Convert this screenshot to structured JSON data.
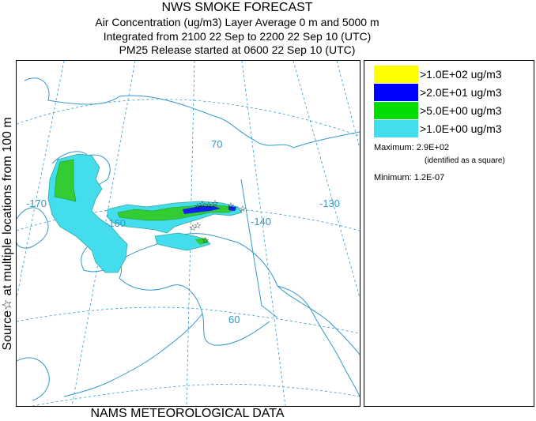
{
  "header": {
    "title": "NWS SMOKE FORECAST",
    "line2": "Air Concentration (ug/m3) Layer Average    0 m and  5000 m",
    "line3": "Integrated from 2100 22 Sep to 2200 22 Sep 10 (UTC)",
    "line4": "PM25 Release started at 0600 22 Sep 10 (UTC)"
  },
  "side_label": "Source☆   at multiple locations      from   100 m",
  "footer": "NAMS METEOROLOGICAL DATA",
  "map": {
    "grid_labels": {
      "lat70": "70",
      "lat60": "60",
      "lon170": "-170",
      "lon160": "-160",
      "lon140": "-140",
      "lon130": "-130"
    },
    "colors": {
      "land_outline": "#3399cc",
      "grid": "#3399cc",
      "border": "#3399cc"
    }
  },
  "legend": {
    "items": [
      {
        "label": ">1.0E+02 ug/m3",
        "color": "#ffff00"
      },
      {
        "label": ">2.0E+01 ug/m3",
        "color": "#0000ff"
      },
      {
        "label": ">5.0E+00 ug/m3",
        "color": "#00dd00"
      },
      {
        "label": ">1.0E+00 ug/m3",
        "color": "#44ddee"
      }
    ],
    "maximum": "Maximum: 2.9E+02",
    "max_note": "(identified as a square)",
    "minimum": "Minimum: 1.2E-07"
  }
}
